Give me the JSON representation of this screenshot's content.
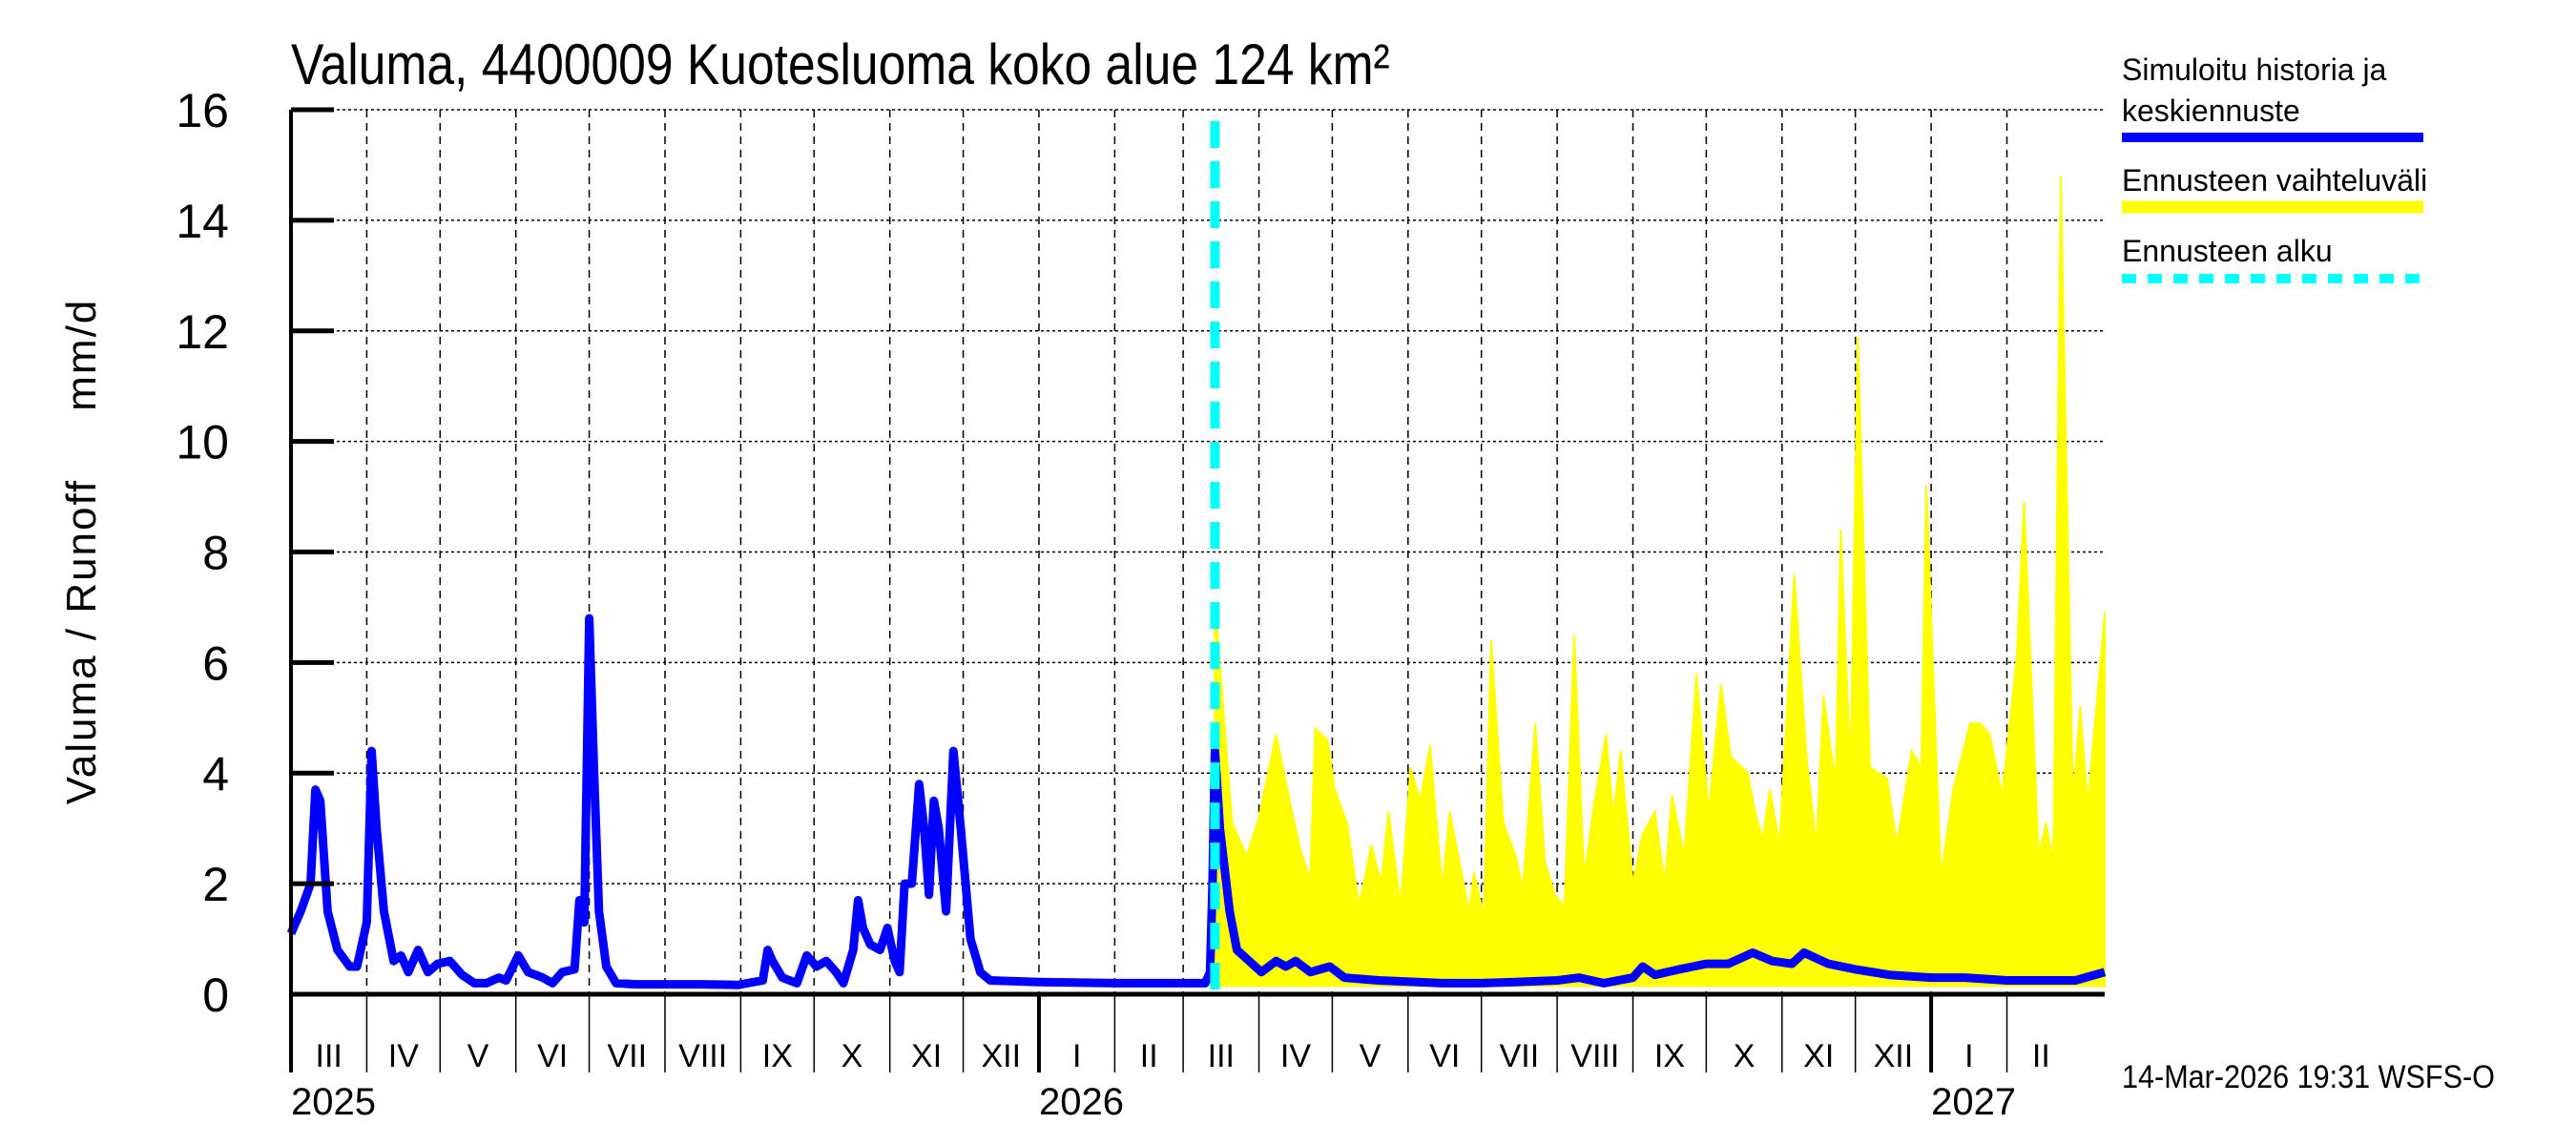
{
  "title": "Valuma, 4400009 Kuotesluoma koko alue 124 km²",
  "footer": "14-Mar-2026 19:31 WSFS-O",
  "legend": {
    "history_line1": "Simuloitu historia ja",
    "history_line2": "keskiennuste",
    "range": "Ennusteen vaihteluväli",
    "start": "Ennusteen alku"
  },
  "colors": {
    "history": "#0000ff",
    "range": "#ffff00",
    "start": "#00ffff",
    "grid": "#000000"
  },
  "chart_data": {
    "type": "line",
    "title": "Valuma, 4400009 Kuotesluoma koko alue 124 km²",
    "ylabel": "Valuma / Runoff     mm/d",
    "xlabel": "",
    "ylim": [
      0,
      16
    ],
    "yticks": [
      "0",
      "2",
      "4",
      "6",
      "8",
      "10",
      "12",
      "14",
      "16"
    ],
    "xlim": [
      "2025-03-01",
      "2027-03-13"
    ],
    "grid": true,
    "legend_position": "right",
    "month_labels": [
      {
        "label": "III",
        "month": "2025-03"
      },
      {
        "label": "IV",
        "month": "2025-04"
      },
      {
        "label": "V",
        "month": "2025-05"
      },
      {
        "label": "VI",
        "month": "2025-06"
      },
      {
        "label": "VII",
        "month": "2025-07"
      },
      {
        "label": "VIII",
        "month": "2025-08"
      },
      {
        "label": "IX",
        "month": "2025-09"
      },
      {
        "label": "X",
        "month": "2025-10"
      },
      {
        "label": "XI",
        "month": "2025-11"
      },
      {
        "label": "XII",
        "month": "2025-12"
      },
      {
        "label": "I",
        "month": "2026-01"
      },
      {
        "label": "II",
        "month": "2026-02"
      },
      {
        "label": "III",
        "month": "2026-03"
      },
      {
        "label": "IV",
        "month": "2026-04"
      },
      {
        "label": "V",
        "month": "2026-05"
      },
      {
        "label": "VI",
        "month": "2026-06"
      },
      {
        "label": "VII",
        "month": "2026-07"
      },
      {
        "label": "VIII",
        "month": "2026-08"
      },
      {
        "label": "IX",
        "month": "2026-09"
      },
      {
        "label": "X",
        "month": "2026-10"
      },
      {
        "label": "XI",
        "month": "2026-11"
      },
      {
        "label": "XII",
        "month": "2026-12"
      },
      {
        "label": "I",
        "month": "2027-01"
      },
      {
        "label": "II",
        "month": "2027-02"
      }
    ],
    "year_labels": [
      {
        "label": "2025",
        "date": "2025-03-01"
      },
      {
        "label": "2026",
        "date": "2026-01-01"
      },
      {
        "label": "2027",
        "date": "2027-01-01"
      }
    ],
    "forecast_start": "2026-03-14",
    "series": [
      {
        "name": "Simuloitu historia ja keskiennuste",
        "kind": "line",
        "points": [
          [
            "2025-03-01",
            1.1
          ],
          [
            "2025-03-05",
            1.5
          ],
          [
            "2025-03-09",
            2.0
          ],
          [
            "2025-03-11",
            3.7
          ],
          [
            "2025-03-13",
            3.5
          ],
          [
            "2025-03-16",
            1.5
          ],
          [
            "2025-03-20",
            0.8
          ],
          [
            "2025-03-25",
            0.5
          ],
          [
            "2025-03-28",
            0.5
          ],
          [
            "2025-04-01",
            1.3
          ],
          [
            "2025-04-03",
            4.4
          ],
          [
            "2025-04-05",
            3.0
          ],
          [
            "2025-04-08",
            1.5
          ],
          [
            "2025-04-12",
            0.6
          ],
          [
            "2025-04-15",
            0.7
          ],
          [
            "2025-04-18",
            0.4
          ],
          [
            "2025-04-22",
            0.8
          ],
          [
            "2025-04-26",
            0.4
          ],
          [
            "2025-04-30",
            0.55
          ],
          [
            "2025-05-05",
            0.6
          ],
          [
            "2025-05-10",
            0.35
          ],
          [
            "2025-05-15",
            0.2
          ],
          [
            "2025-05-20",
            0.2
          ],
          [
            "2025-05-25",
            0.3
          ],
          [
            "2025-05-28",
            0.25
          ],
          [
            "2025-06-02",
            0.7
          ],
          [
            "2025-06-06",
            0.4
          ],
          [
            "2025-06-12",
            0.3
          ],
          [
            "2025-06-16",
            0.2
          ],
          [
            "2025-06-20",
            0.4
          ],
          [
            "2025-06-25",
            0.45
          ],
          [
            "2025-06-27",
            1.7
          ],
          [
            "2025-06-29",
            1.3
          ],
          [
            "2025-07-01",
            6.8
          ],
          [
            "2025-07-03",
            4.0
          ],
          [
            "2025-07-05",
            1.5
          ],
          [
            "2025-07-08",
            0.5
          ],
          [
            "2025-07-12",
            0.2
          ],
          [
            "2025-07-20",
            0.18
          ],
          [
            "2025-08-01",
            0.18
          ],
          [
            "2025-08-15",
            0.18
          ],
          [
            "2025-08-31",
            0.17
          ],
          [
            "2025-09-10",
            0.25
          ],
          [
            "2025-09-12",
            0.8
          ],
          [
            "2025-09-14",
            0.6
          ],
          [
            "2025-09-18",
            0.3
          ],
          [
            "2025-09-24",
            0.2
          ],
          [
            "2025-09-28",
            0.7
          ],
          [
            "2025-10-02",
            0.5
          ],
          [
            "2025-10-06",
            0.6
          ],
          [
            "2025-10-10",
            0.4
          ],
          [
            "2025-10-13",
            0.2
          ],
          [
            "2025-10-17",
            0.8
          ],
          [
            "2025-10-19",
            1.7
          ],
          [
            "2025-10-21",
            1.2
          ],
          [
            "2025-10-24",
            0.9
          ],
          [
            "2025-10-28",
            0.8
          ],
          [
            "2025-10-31",
            1.2
          ],
          [
            "2025-11-03",
            0.6
          ],
          [
            "2025-11-05",
            0.4
          ],
          [
            "2025-11-07",
            2.0
          ],
          [
            "2025-11-10",
            2.0
          ],
          [
            "2025-11-13",
            3.8
          ],
          [
            "2025-11-15",
            3.0
          ],
          [
            "2025-11-17",
            1.8
          ],
          [
            "2025-11-19",
            3.5
          ],
          [
            "2025-11-21",
            3.0
          ],
          [
            "2025-11-24",
            1.5
          ],
          [
            "2025-11-27",
            4.4
          ],
          [
            "2025-11-30",
            3.0
          ],
          [
            "2025-12-04",
            1.0
          ],
          [
            "2025-12-08",
            0.4
          ],
          [
            "2025-12-12",
            0.25
          ],
          [
            "2026-01-01",
            0.22
          ],
          [
            "2026-02-01",
            0.2
          ],
          [
            "2026-03-10",
            0.2
          ],
          [
            "2026-03-12",
            0.4
          ],
          [
            "2026-03-13",
            2.0
          ],
          [
            "2026-03-14",
            4.4
          ],
          [
            "2026-03-16",
            3.0
          ],
          [
            "2026-03-20",
            1.5
          ],
          [
            "2026-03-23",
            0.8
          ],
          [
            "2026-03-28",
            0.6
          ],
          [
            "2026-04-02",
            0.4
          ],
          [
            "2026-04-08",
            0.6
          ],
          [
            "2026-04-12",
            0.5
          ],
          [
            "2026-04-16",
            0.6
          ],
          [
            "2026-04-22",
            0.4
          ],
          [
            "2026-04-30",
            0.5
          ],
          [
            "2026-05-06",
            0.3
          ],
          [
            "2026-05-20",
            0.25
          ],
          [
            "2026-06-15",
            0.2
          ],
          [
            "2026-07-01",
            0.2
          ],
          [
            "2026-07-15",
            0.22
          ],
          [
            "2026-08-01",
            0.25
          ],
          [
            "2026-08-10",
            0.3
          ],
          [
            "2026-08-20",
            0.2
          ],
          [
            "2026-09-01",
            0.3
          ],
          [
            "2026-09-05",
            0.5
          ],
          [
            "2026-09-10",
            0.35
          ],
          [
            "2026-09-20",
            0.45
          ],
          [
            "2026-10-01",
            0.55
          ],
          [
            "2026-10-10",
            0.55
          ],
          [
            "2026-10-20",
            0.75
          ],
          [
            "2026-10-28",
            0.6
          ],
          [
            "2026-11-05",
            0.55
          ],
          [
            "2026-11-10",
            0.75
          ],
          [
            "2026-11-20",
            0.55
          ],
          [
            "2026-12-01",
            0.45
          ],
          [
            "2026-12-15",
            0.35
          ],
          [
            "2027-01-01",
            0.3
          ],
          [
            "2027-01-15",
            0.3
          ],
          [
            "2027-02-01",
            0.25
          ],
          [
            "2027-02-20",
            0.25
          ],
          [
            "2027-03-01",
            0.25
          ],
          [
            "2027-03-13",
            0.4
          ]
        ]
      },
      {
        "name": "Ennusteen vaihteluväli",
        "kind": "band",
        "lower": 0.15,
        "upper": [
          [
            "2026-03-14",
            7.1
          ],
          [
            "2026-03-21",
            3.1
          ],
          [
            "2026-03-27",
            2.5
          ],
          [
            "2026-04-01",
            3.2
          ],
          [
            "2026-04-08",
            4.7
          ],
          [
            "2026-04-14",
            3.4
          ],
          [
            "2026-04-18",
            2.6
          ],
          [
            "2026-04-22",
            2.1
          ],
          [
            "2026-04-24",
            4.8
          ],
          [
            "2026-04-29",
            4.6
          ],
          [
            "2026-05-02",
            3.7
          ],
          [
            "2026-05-07",
            3.1
          ],
          [
            "2026-05-12",
            1.6
          ],
          [
            "2026-05-17",
            2.7
          ],
          [
            "2026-05-21",
            2.0
          ],
          [
            "2026-05-24",
            3.3
          ],
          [
            "2026-05-29",
            1.6
          ],
          [
            "2026-06-02",
            4.1
          ],
          [
            "2026-06-06",
            3.5
          ],
          [
            "2026-06-10",
            4.5
          ],
          [
            "2026-06-15",
            1.9
          ],
          [
            "2026-06-18",
            3.3
          ],
          [
            "2026-06-26",
            1.5
          ],
          [
            "2026-06-28",
            2.2
          ],
          [
            "2026-07-02",
            1.4
          ],
          [
            "2026-07-05",
            6.4
          ],
          [
            "2026-07-10",
            3.1
          ],
          [
            "2026-07-15",
            2.5
          ],
          [
            "2026-07-18",
            1.9
          ],
          [
            "2026-07-23",
            4.9
          ],
          [
            "2026-07-27",
            2.4
          ],
          [
            "2026-07-31",
            1.8
          ],
          [
            "2026-08-04",
            1.6
          ],
          [
            "2026-08-08",
            6.5
          ],
          [
            "2026-08-12",
            2.1
          ],
          [
            "2026-08-16",
            3.4
          ],
          [
            "2026-08-21",
            4.7
          ],
          [
            "2026-08-24",
            3.2
          ],
          [
            "2026-08-27",
            4.4
          ],
          [
            "2026-09-01",
            2.0
          ],
          [
            "2026-09-05",
            2.9
          ],
          [
            "2026-09-10",
            3.3
          ],
          [
            "2026-09-14",
            2.0
          ],
          [
            "2026-09-17",
            3.6
          ],
          [
            "2026-09-22",
            2.5
          ],
          [
            "2026-09-27",
            5.8
          ],
          [
            "2026-10-02",
            3.3
          ],
          [
            "2026-10-07",
            5.6
          ],
          [
            "2026-10-11",
            4.3
          ],
          [
            "2026-10-18",
            4.0
          ],
          [
            "2026-10-21",
            3.3
          ],
          [
            "2026-10-24",
            2.8
          ],
          [
            "2026-10-27",
            3.7
          ],
          [
            "2026-10-31",
            2.7
          ],
          [
            "2026-11-06",
            7.6
          ],
          [
            "2026-11-11",
            4.3
          ],
          [
            "2026-11-15",
            2.7
          ],
          [
            "2026-11-18",
            5.4
          ],
          [
            "2026-11-21",
            4.4
          ],
          [
            "2026-11-23",
            3.9
          ],
          [
            "2026-11-25",
            8.4
          ],
          [
            "2026-11-29",
            4.0
          ],
          [
            "2026-12-02",
            11.9
          ],
          [
            "2026-12-07",
            4.1
          ],
          [
            "2026-12-14",
            3.9
          ],
          [
            "2026-12-18",
            2.7
          ],
          [
            "2026-12-24",
            4.4
          ],
          [
            "2026-12-28",
            4.1
          ],
          [
            "2026-12-30",
            9.2
          ],
          [
            "2027-01-05",
            2.1
          ],
          [
            "2027-01-10",
            3.7
          ],
          [
            "2027-01-17",
            4.9
          ],
          [
            "2027-01-21",
            4.9
          ],
          [
            "2027-01-25",
            4.7
          ],
          [
            "2027-01-30",
            3.6
          ],
          [
            "2027-02-05",
            6.1
          ],
          [
            "2027-02-08",
            8.9
          ],
          [
            "2027-02-14",
            2.5
          ],
          [
            "2027-02-17",
            3.1
          ],
          [
            "2027-02-20",
            2.4
          ],
          [
            "2027-02-23",
            14.8
          ],
          [
            "2027-02-28",
            3.5
          ],
          [
            "2027-03-03",
            5.2
          ],
          [
            "2027-03-06",
            3.4
          ],
          [
            "2027-03-13",
            6.9
          ]
        ]
      }
    ]
  }
}
